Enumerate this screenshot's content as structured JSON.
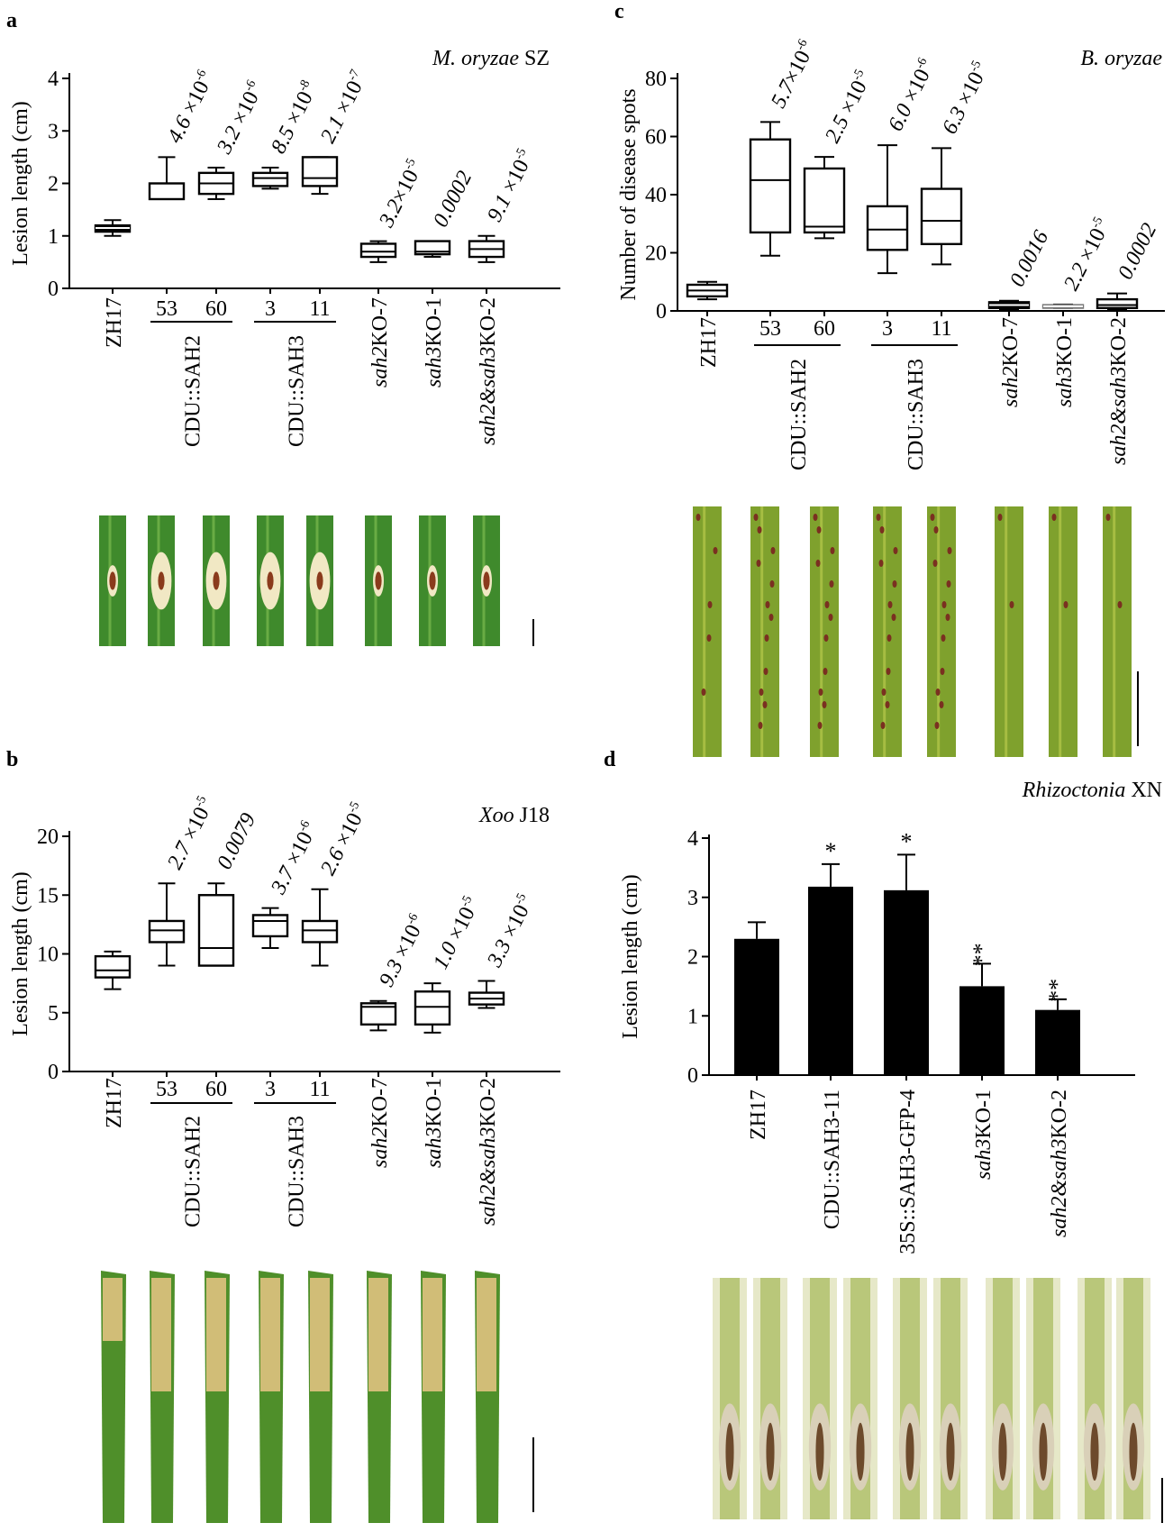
{
  "figure": {
    "panels": [
      {
        "panel_label": "a",
        "pathogen_italic": "M. oryzae",
        "pathogen_suffix": "SZ",
        "photo_kind": "leaf",
        "photo_colors": {
          "base": "#3f8a2c",
          "light": "#7cbb4e",
          "lesion": "#8a3b1c",
          "halo": "#f1e8c4"
        }
      },
      {
        "panel_label": "b",
        "pathogen_italic": "Xoo",
        "pathogen_suffix": "J18",
        "photo_kind": "tip",
        "photo_colors": {
          "base": "#4f8f2a",
          "light": "#c9a35a",
          "lesion": "#b87b36",
          "halo": "#e7c585"
        }
      },
      {
        "panel_label": "c",
        "pathogen_italic": "B. oryzae",
        "pathogen_suffix": "",
        "photo_kind": "spots",
        "photo_colors": {
          "base": "#7fa12d",
          "light": "#b7c94c",
          "lesion": "#7a3020",
          "halo": "#a2b545"
        }
      },
      {
        "panel_label": "d",
        "pathogen_italic": "Rhizoctonia",
        "pathogen_suffix": "XN",
        "photo_kind": "sheath",
        "photo_colors": {
          "base": "#b9c77a",
          "light": "#e6e8c8",
          "lesion": "#6d4a2c",
          "halo": "#d9d0b8"
        }
      }
    ]
  },
  "chart_data": [
    {
      "type": "box",
      "panel": "a",
      "title": "M. oryzae SZ",
      "ylabel": "Lesion length (cm)",
      "xlabel": "",
      "ylim": [
        0,
        4
      ],
      "yticks": [
        0,
        1,
        2,
        3,
        4
      ],
      "categories": [
        "ZH17",
        "53",
        "60",
        "3",
        "11",
        "sah2KO-7",
        "sah3KO-1",
        "sah2&sah3KO-2"
      ],
      "groups": [
        {
          "label": "CDU::SAH2",
          "members": [
            "53",
            "60"
          ]
        },
        {
          "label": "CDU::SAH3",
          "members": [
            "3",
            "11"
          ]
        }
      ],
      "boxes": [
        {
          "min": 1.0,
          "q1": 1.08,
          "median": 1.15,
          "q3": 1.2,
          "max": 1.3
        },
        {
          "min": 1.7,
          "q1": 1.7,
          "median": 2.0,
          "q3": 2.0,
          "max": 2.5
        },
        {
          "min": 1.7,
          "q1": 1.8,
          "median": 2.0,
          "q3": 2.2,
          "max": 2.3
        },
        {
          "min": 1.9,
          "q1": 1.95,
          "median": 2.1,
          "q3": 2.2,
          "max": 2.3
        },
        {
          "min": 1.8,
          "q1": 1.95,
          "median": 2.1,
          "q3": 2.5,
          "max": 2.5
        },
        {
          "min": 0.5,
          "q1": 0.6,
          "median": 0.7,
          "q3": 0.85,
          "max": 0.9
        },
        {
          "min": 0.6,
          "q1": 0.65,
          "median": 0.7,
          "q3": 0.9,
          "max": 0.9
        },
        {
          "min": 0.5,
          "q1": 0.6,
          "median": 0.75,
          "q3": 0.9,
          "max": 1.0
        }
      ],
      "pvalues": [
        "",
        {
          "m": "4.6",
          "t": " ×10",
          "e": "-6"
        },
        {
          "m": "3.2",
          "t": " ×10",
          "e": "-6"
        },
        {
          "m": "8.5",
          "t": " ×10",
          "e": "-8"
        },
        {
          "m": "2.1",
          "t": " ×10",
          "e": "-7"
        },
        {
          "m": "3.2",
          "t": "×10",
          "e": "-5"
        },
        {
          "m": "0.0002",
          "t": "",
          "e": ""
        },
        {
          "m": "9.1",
          "t": " ×10",
          "e": "-5"
        }
      ]
    },
    {
      "type": "box",
      "panel": "b",
      "title": "Xoo J18",
      "ylabel": "Lesion length (cm)",
      "xlabel": "",
      "ylim": [
        0,
        20
      ],
      "yticks": [
        0,
        5,
        10,
        15,
        20
      ],
      "categories": [
        "ZH17",
        "53",
        "60",
        "3",
        "11",
        "sah2KO-7",
        "sah3KO-1",
        "sah2&sah3KO-2"
      ],
      "groups": [
        {
          "label": "CDU::SAH2",
          "members": [
            "53",
            "60"
          ]
        },
        {
          "label": "CDU::SAH3",
          "members": [
            "3",
            "11"
          ]
        }
      ],
      "boxes": [
        {
          "min": 7.0,
          "q1": 8.0,
          "median": 8.6,
          "q3": 9.8,
          "max": 10.2
        },
        {
          "min": 9.0,
          "q1": 11.0,
          "median": 12.0,
          "q3": 12.8,
          "max": 16.0
        },
        {
          "min": 9.0,
          "q1": 9.0,
          "median": 10.5,
          "q3": 15.0,
          "max": 16.0
        },
        {
          "min": 10.5,
          "q1": 11.5,
          "median": 12.8,
          "q3": 13.3,
          "max": 13.9
        },
        {
          "min": 9.0,
          "q1": 11.0,
          "median": 12.0,
          "q3": 12.8,
          "max": 15.5
        },
        {
          "min": 3.5,
          "q1": 4.0,
          "median": 5.5,
          "q3": 5.8,
          "max": 6.0
        },
        {
          "min": 3.3,
          "q1": 4.0,
          "median": 5.5,
          "q3": 6.8,
          "max": 7.5
        },
        {
          "min": 5.4,
          "q1": 5.7,
          "median": 6.2,
          "q3": 6.7,
          "max": 7.7
        }
      ],
      "pvalues": [
        "",
        {
          "m": "2.7",
          "t": " ×10",
          "e": "-5"
        },
        {
          "m": "0.0079",
          "t": "",
          "e": ""
        },
        {
          "m": "3.7",
          "t": " ×10",
          "e": "-6"
        },
        {
          "m": "2.6",
          "t": " ×10",
          "e": "-5"
        },
        {
          "m": "9.3",
          "t": " ×10",
          "e": "-6"
        },
        {
          "m": "1.0",
          "t": " ×10",
          "e": "-5"
        },
        {
          "m": "3.3",
          "t": " ×10",
          "e": "-5"
        }
      ]
    },
    {
      "type": "box",
      "panel": "c",
      "title": "B. oryzae",
      "ylabel": "Number of disease spots",
      "xlabel": "",
      "ylim": [
        0,
        80
      ],
      "yticks": [
        0,
        20,
        40,
        60,
        80
      ],
      "categories": [
        "ZH17",
        "53",
        "60",
        "3",
        "11",
        "sah2KO-7",
        "sah3KO-1",
        "sah2&sah3KO-2"
      ],
      "groups": [
        {
          "label": "CDU::SAH2",
          "members": [
            "53",
            "60"
          ]
        },
        {
          "label": "CDU::SAH3",
          "members": [
            "3",
            "11"
          ]
        }
      ],
      "boxes": [
        {
          "min": 4,
          "q1": 5,
          "median": 7,
          "q3": 9,
          "max": 10
        },
        {
          "min": 19,
          "q1": 27,
          "median": 45,
          "q3": 59,
          "max": 65
        },
        {
          "min": 25,
          "q1": 27,
          "median": 29,
          "q3": 49,
          "max": 53
        },
        {
          "min": 13,
          "q1": 21,
          "median": 28,
          "q3": 36,
          "max": 57
        },
        {
          "min": 16,
          "q1": 23,
          "median": 31,
          "q3": 42,
          "max": 56
        },
        {
          "min": 0.5,
          "q1": 1,
          "median": 2,
          "q3": 3,
          "max": 3.5
        },
        {
          "min": 1,
          "q1": 1.3,
          "median": 1.6,
          "q3": 2,
          "max": 2.2
        },
        {
          "min": 0.5,
          "q1": 1,
          "median": 2,
          "q3": 4,
          "max": 6
        }
      ],
      "pvalues": [
        "",
        {
          "m": "5.7",
          "t": "×10",
          "e": "-6"
        },
        {
          "m": "2.5",
          "t": " ×10",
          "e": "-5"
        },
        {
          "m": "6.0",
          "t": " ×10",
          "e": "-6"
        },
        {
          "m": "6.3",
          "t": " ×10",
          "e": "-5"
        },
        {
          "m": "0.0016",
          "t": "",
          "e": ""
        },
        {
          "m": "2.2",
          "t": " ×10",
          "e": "-5"
        },
        {
          "m": "0.0002",
          "t": "",
          "e": ""
        }
      ]
    },
    {
      "type": "bar",
      "panel": "d",
      "title": "Rhizoctonia XN",
      "ylabel": "Lesion length (cm)",
      "xlabel": "",
      "ylim": [
        0,
        4
      ],
      "yticks": [
        0,
        1,
        2,
        3,
        4
      ],
      "categories": [
        "ZH17",
        "CDU::SAH3-11",
        "35S::SAH3-GFP-4",
        "sah3KO-1",
        "sah2&sah3KO-2"
      ],
      "values": [
        2.3,
        3.18,
        3.12,
        1.5,
        1.1
      ],
      "errors": [
        0.28,
        0.38,
        0.6,
        0.38,
        0.18
      ],
      "significance": [
        "",
        "*",
        "*",
        "**",
        "**"
      ]
    }
  ]
}
